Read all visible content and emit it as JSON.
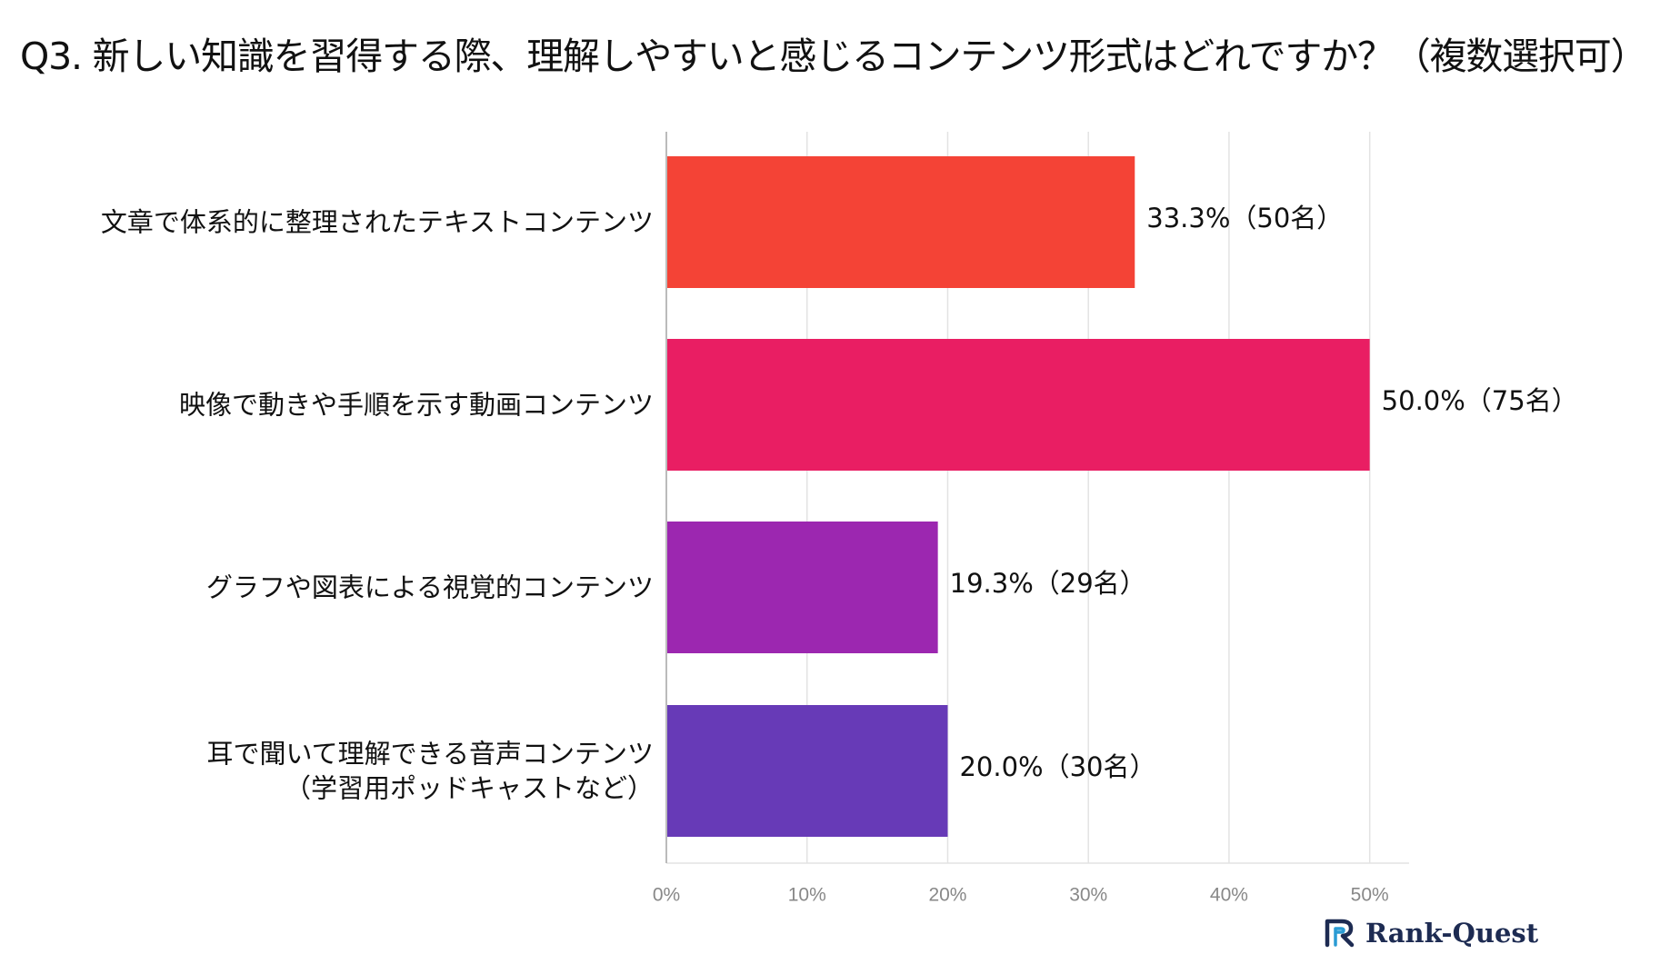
{
  "chart_data": {
    "type": "bar",
    "orientation": "horizontal",
    "title": "Q3. 新しい知識を習得する際、理解しやすいと感じるコンテンツ形式はどれですか？（複数選択可）",
    "categories": [
      [
        "文章で体系的に整理されたテキストコンテンツ"
      ],
      [
        "映像で動きや手順を示す動画コンテンツ"
      ],
      [
        "グラフや図表による視覚的コンテンツ"
      ],
      [
        "耳で聞いて理解できる音声コンテンツ",
        "（学習用ポッドキャストなど）"
      ]
    ],
    "values": [
      33.3,
      50.0,
      19.3,
      20.0
    ],
    "value_labels": [
      "33.3%（50名）",
      "50.0%（75名）",
      "19.3%（29名）",
      "20.0%（30名）"
    ],
    "colors": [
      "#f44336",
      "#e91e63",
      "#9c27b0",
      "#673ab7"
    ],
    "xlim": [
      0,
      52.8
    ],
    "ticks": [
      0,
      10,
      20,
      30,
      40,
      50
    ],
    "tick_labels": [
      "0%",
      "10%",
      "20%",
      "30%",
      "40%",
      "50%"
    ],
    "grid": true,
    "xlabel": "",
    "ylabel": ""
  },
  "logo": {
    "text": "Rank-Quest",
    "icon": "rank-quest-logo-icon",
    "color": "#1d2b52",
    "accent": "#2a9bd4"
  }
}
